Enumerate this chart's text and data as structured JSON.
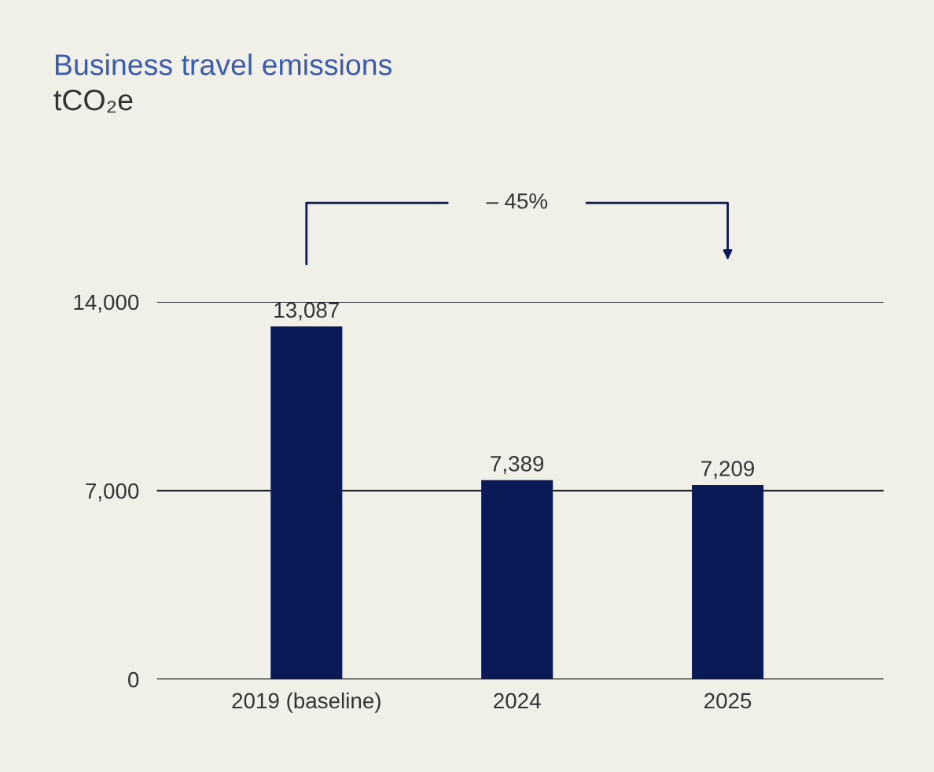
{
  "chart_data": {
    "type": "bar",
    "title": "Business travel emissions",
    "subtitle": "tCO₂e",
    "categories": [
      "2019 (baseline)",
      "2024",
      "2025"
    ],
    "values": [
      13087,
      7389,
      7209
    ],
    "color": "#0b1957",
    "value_labels": [
      "13,087",
      "7,389",
      "7,209"
    ],
    "ylim": [
      0,
      14000
    ],
    "yticks": [
      0,
      {
        "value": 7000,
        "label": "7,000"
      },
      {
        "value": 14000,
        "label": "14,000"
      }
    ],
    "grid": "y",
    "annotations": [
      "– 45%"
    ]
  }
}
